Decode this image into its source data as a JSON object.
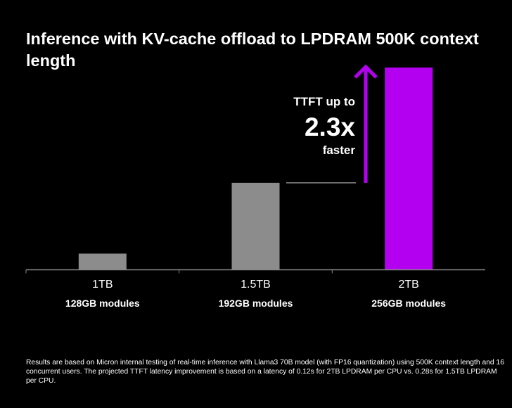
{
  "chart_data": {
    "type": "bar",
    "title": "Inference with KV-cache offload to LPDRAM 500K context length",
    "categories": [
      "1TB",
      "1.5TB",
      "2TB"
    ],
    "subcategories": [
      "128GB modules",
      "192GB modules",
      "256GB modules"
    ],
    "values": [
      0.08,
      0.43,
      1.0
    ],
    "bar_colors": [
      "#8c8c8c",
      "#8c8c8c",
      "#b400f0"
    ],
    "ylim": [
      0,
      1.0
    ],
    "grid": false,
    "annotation": {
      "line1": "TTFT up to",
      "value": "2.3x",
      "line3": "faster",
      "arrow_color": "#b400f0"
    }
  },
  "footnote": "Results are based on Micron internal testing of real-time inference with Llama3 70B model (with FP16 quantization) using 500K context length and 16 concurrent users. The projected TTFT latency improvement is based on a latency of 0.12s for 2TB LPDRAM per CPU vs. 0.28s for 1.5TB LPDRAM per CPU."
}
